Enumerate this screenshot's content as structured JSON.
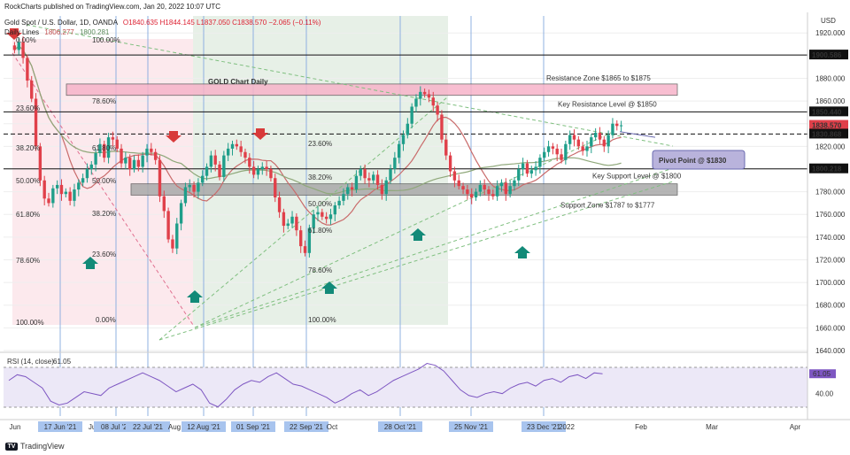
{
  "header": {
    "published": "RockCharts published on TradingView.com, Jan 20, 2022 10:07 UTC",
    "symbol": "Gold Spot / U.S. Dollar, 1D, OANDA",
    "ohlc": "O1840.635  H1844.145  L1837.050  C1838.570  −2.065 (−0.11%)",
    "indicator": "Daily Lines",
    "ind_val1": "1806.277",
    "ind_val2": "1800.281"
  },
  "currency": "USD",
  "footer": {
    "brand": "TradingView",
    "logo_text": "TV"
  },
  "chart_data": {
    "type": "candlestick",
    "title": "GOLD Chart Daily",
    "price_axis": [
      1920,
      1900,
      1880,
      1860,
      1840,
      1820,
      1800,
      1780,
      1760,
      1740,
      1720,
      1700,
      1680,
      1660,
      1640
    ],
    "ylim": [
      1640,
      1935
    ],
    "time_labels": [
      "Jun",
      "17 Jun '21",
      "Jul",
      "08 Jul '21",
      "22 Jul '21",
      "Aug",
      "12 Aug '21",
      "01 Sep '21",
      "22 Sep '21",
      "Oct",
      "28 Oct '21",
      "25 Nov '21",
      "23 Dec '21",
      "2022",
      "Feb",
      "Mar",
      "Apr"
    ],
    "highlighted_dates": [
      "17 Jun '21",
      "08 Jul '21",
      "22 Jul '21",
      "12 Aug '21",
      "01 Sep '21",
      "22 Sep '21",
      "28 Oct '21",
      "25 Nov '21",
      "23 Dec '21"
    ],
    "closes": [
      1905,
      1912,
      1898,
      1878,
      1862,
      1820,
      1790,
      1774,
      1770,
      1783,
      1786,
      1778,
      1780,
      1772,
      1782,
      1788,
      1792,
      1800,
      1804,
      1814,
      1822,
      1810,
      1828,
      1826,
      1818,
      1805,
      1810,
      1800,
      1808,
      1802,
      1812,
      1818,
      1815,
      1808,
      1776,
      1763,
      1738,
      1730,
      1752,
      1770,
      1784,
      1786,
      1780,
      1788,
      1794,
      1802,
      1812,
      1804,
      1793,
      1812,
      1818,
      1822,
      1820,
      1815,
      1810,
      1802,
      1795,
      1800,
      1802,
      1800,
      1792,
      1775,
      1762,
      1750,
      1752,
      1758,
      1746,
      1732,
      1726,
      1748,
      1760,
      1762,
      1758,
      1756,
      1760,
      1768,
      1772,
      1778,
      1784,
      1782,
      1794,
      1800,
      1792,
      1790,
      1795,
      1786,
      1778,
      1790,
      1800,
      1810,
      1822,
      1830,
      1840,
      1855,
      1862,
      1868,
      1866,
      1863,
      1856,
      1848,
      1826,
      1812,
      1798,
      1790,
      1785,
      1782,
      1778,
      1775,
      1780,
      1786,
      1782,
      1778,
      1776,
      1785,
      1788,
      1778,
      1785,
      1790,
      1800,
      1805,
      1796,
      1799,
      1802,
      1810,
      1815,
      1820,
      1818,
      1813,
      1808,
      1822,
      1830,
      1826,
      1820,
      1816,
      1820,
      1828,
      1832,
      1826,
      1820,
      1830,
      1840,
      1838,
      1838.57
    ],
    "price_tags": [
      {
        "value": 1900.586,
        "label": "1900.586",
        "dark": true
      },
      {
        "value": 1850.44,
        "label": "1850.440",
        "dark": true
      },
      {
        "value": 1838.57,
        "label": "1838.570",
        "dark": false,
        "sub": "11:52:14"
      },
      {
        "value": 1830.868,
        "label": "1830.868",
        "dark": true
      },
      {
        "value": 1800.218,
        "label": "1800.218",
        "dark": true
      }
    ],
    "levels": [
      {
        "name": "resistance-level-1900",
        "value": 1900.586,
        "style": "solid"
      },
      {
        "name": "key-resistance-level",
        "value": 1850.44,
        "style": "solid"
      },
      {
        "name": "pivot-level",
        "value": 1830.868,
        "style": "dashed"
      },
      {
        "name": "key-support-level",
        "value": 1800.218,
        "style": "solid"
      }
    ],
    "zones": [
      {
        "name": "resistance-zone",
        "label": "Resistance Zone $1865 to $1875",
        "top": 1875,
        "bottom": 1865,
        "color": "#f7b3c9"
      },
      {
        "name": "support-zone",
        "label": "Support Zone $1787 to $1777",
        "top": 1787,
        "bottom": 1777,
        "color": "#a9a9a9"
      }
    ],
    "annotations": {
      "key_resistance": "Key Resistance Level @ $1850",
      "key_support": "Key Support Level @ $1800",
      "pivot": "Pivot Point @ $1830",
      "fib_left": [
        "0.00%",
        "23.60%",
        "38.20%",
        "50.00%",
        "61.80%",
        "78.60%",
        "100.00%"
      ],
      "fib_top": [
        "100.00%",
        "78.60%",
        "61.80%",
        "50.00%",
        "38.20%",
        "23.60%",
        "0.00%"
      ],
      "fib_mid": [
        "23.60%",
        "38.20%",
        "50.00%",
        "61.80%",
        "78.60%",
        "100.00%"
      ]
    },
    "rsi": {
      "label": "RSI (14, close)",
      "value": "61.05",
      "axis": [
        60.0,
        40.0
      ],
      "series": [
        54,
        60,
        58,
        52,
        46,
        32,
        28,
        30,
        36,
        42,
        40,
        38,
        46,
        50,
        54,
        58,
        62,
        58,
        54,
        48,
        42,
        46,
        50,
        44,
        30,
        26,
        34,
        44,
        50,
        54,
        52,
        58,
        62,
        56,
        50,
        48,
        44,
        40,
        36,
        30,
        34,
        40,
        44,
        38,
        42,
        48,
        54,
        58,
        62,
        66,
        72,
        70,
        64,
        54,
        44,
        38,
        36,
        40,
        42,
        40,
        46,
        50,
        52,
        48,
        54,
        56,
        52,
        58,
        60,
        56,
        62,
        61.05
      ],
      "ylim": [
        20,
        80
      ]
    }
  }
}
